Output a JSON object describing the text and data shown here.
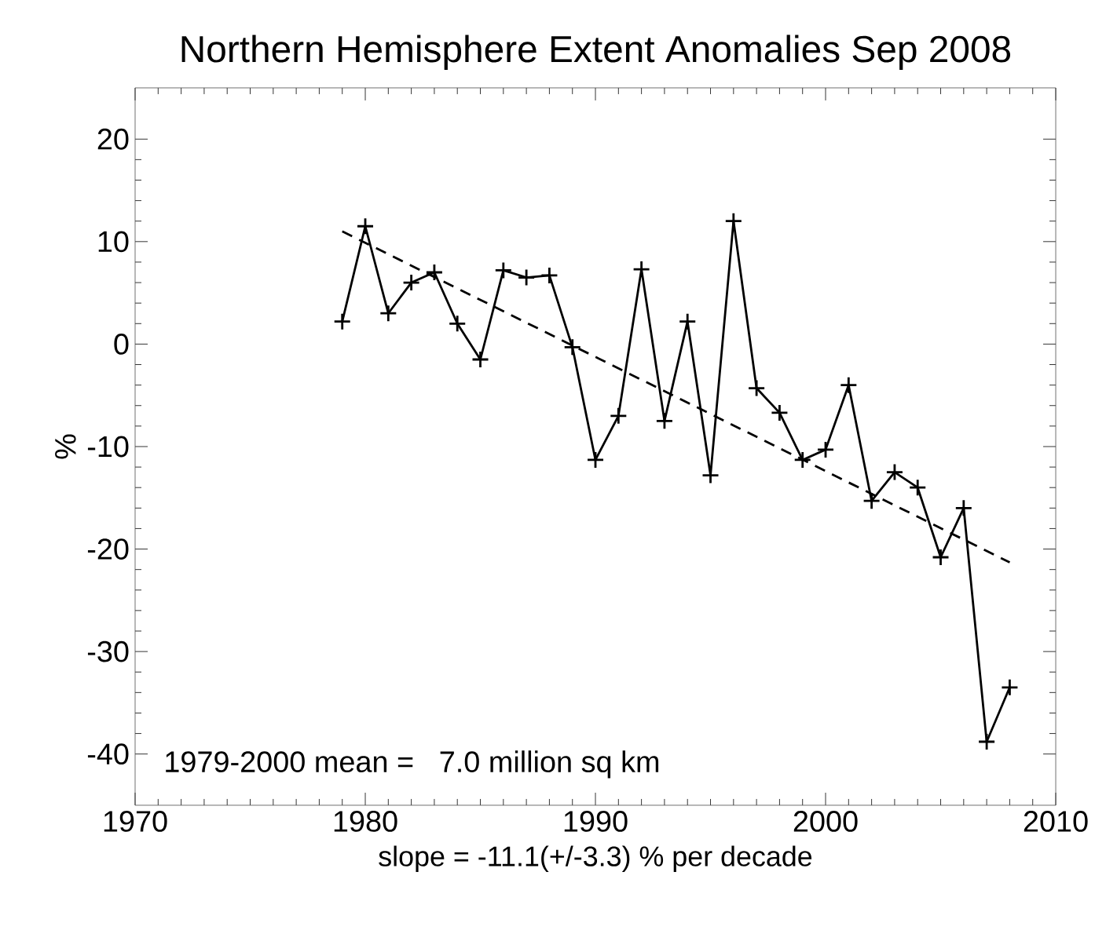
{
  "chart_data": {
    "type": "line",
    "title": "Northern Hemisphere Extent Anomalies Sep 2008",
    "xlabel": "slope = -11.1(+/-3.3) % per decade",
    "ylabel": "%",
    "x": [
      1979,
      1980,
      1981,
      1982,
      1983,
      1984,
      1985,
      1986,
      1987,
      1988,
      1989,
      1990,
      1991,
      1992,
      1993,
      1994,
      1995,
      1996,
      1997,
      1998,
      1999,
      2000,
      2001,
      2002,
      2003,
      2004,
      2005,
      2006,
      2007,
      2008
    ],
    "series": [
      {
        "color": "#000000",
        "marker": "cross",
        "line_style": "solid",
        "values": [
          2.2,
          11.5,
          3,
          6,
          7,
          2,
          -1.5,
          7.2,
          6.5,
          6.7,
          -0.3,
          -11.3,
          -7,
          7.3,
          -7.5,
          2.2,
          -12.8,
          12,
          -4.3,
          -6.7,
          -11.3,
          -10.3,
          -4,
          -15.3,
          -12.5,
          -14,
          -20.8,
          -16,
          -38.8,
          -33.5
        ]
      },
      {
        "type": "line",
        "color": "#000000",
        "marker": "none",
        "line_style": "dashed",
        "x": [
          1979,
          2008
        ],
        "values": [
          11,
          -21.3
        ]
      }
    ],
    "xlim": [
      1970,
      2010
    ],
    "xticks": [
      1970,
      1980,
      1990,
      2000,
      2010
    ],
    "ylim": [
      -45,
      25
    ],
    "yticks": [
      -40,
      -30,
      -20,
      -10,
      0,
      10,
      20
    ],
    "annotations": [
      "1979-2000 mean =   7.0 million sq km"
    ],
    "grid": false
  }
}
